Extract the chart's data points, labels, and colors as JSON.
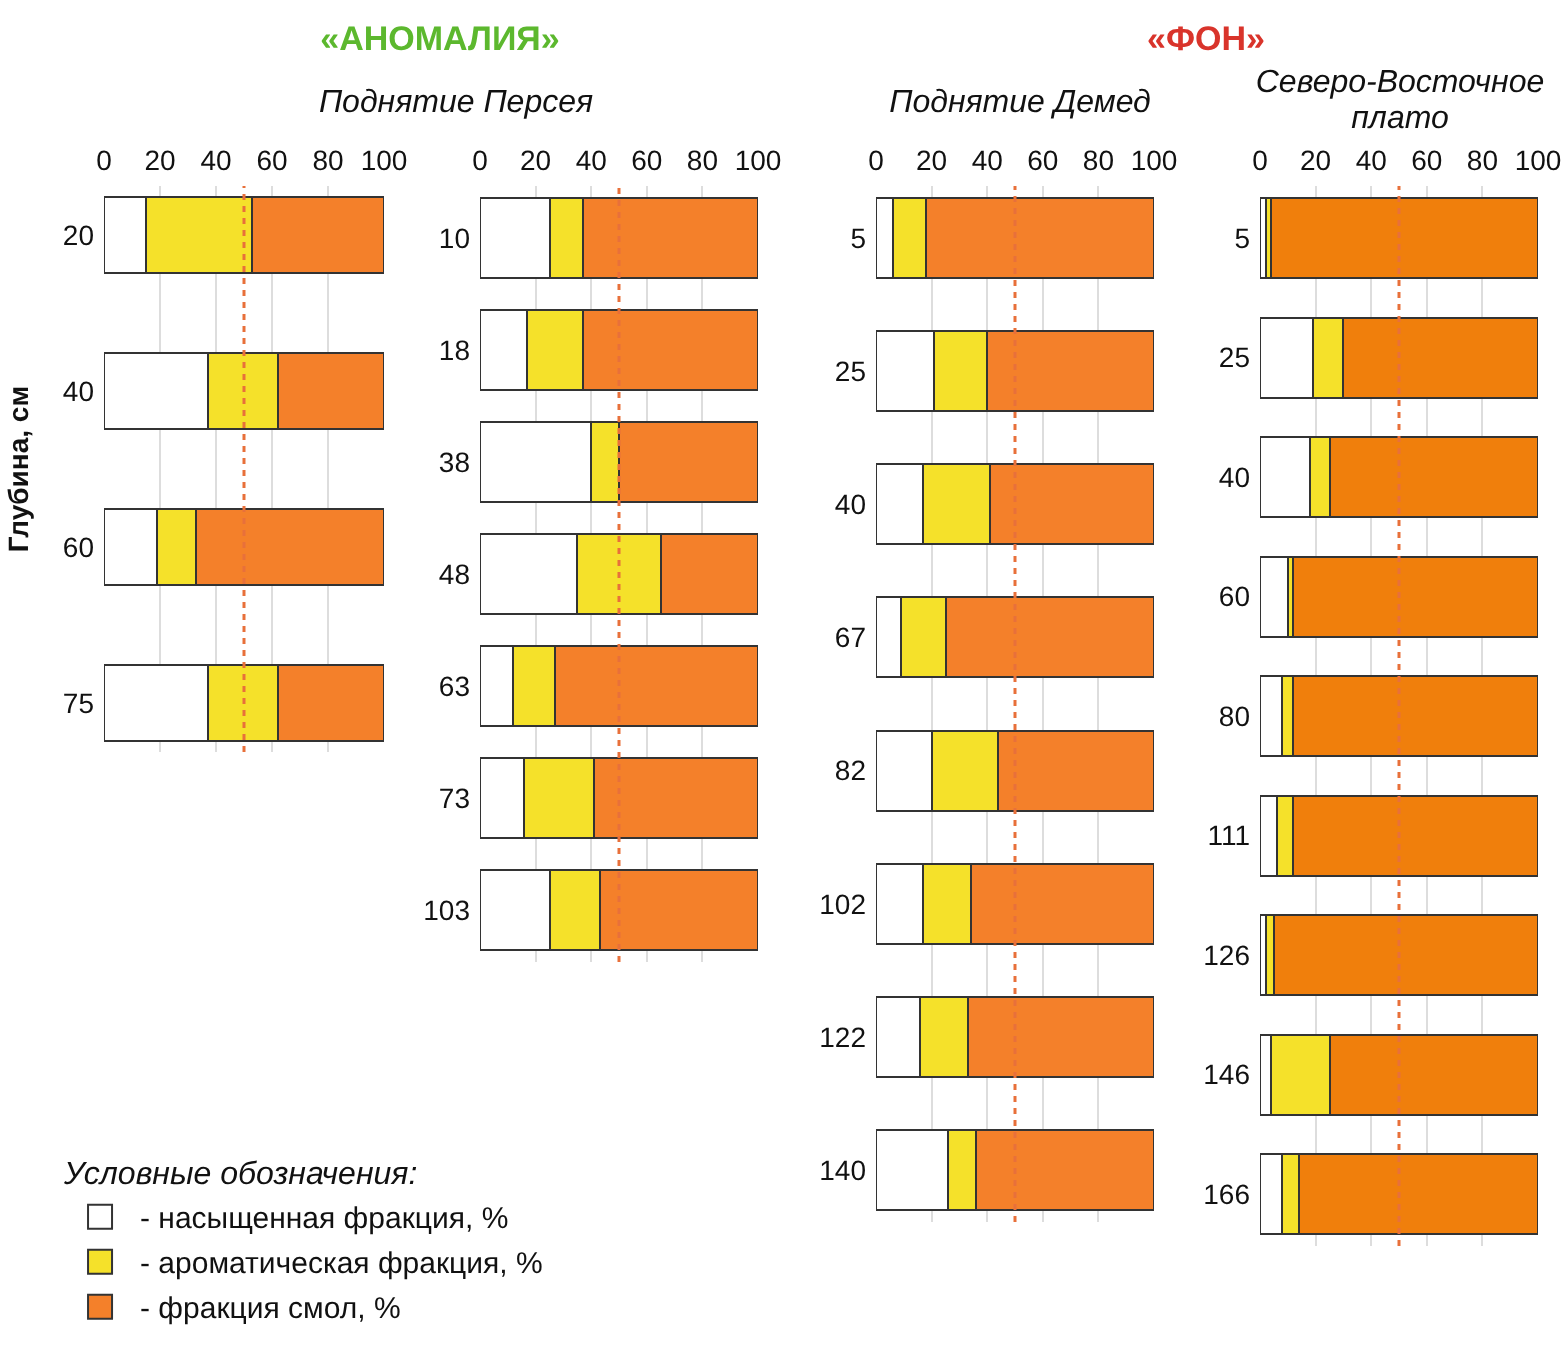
{
  "chart_data": [
    {
      "type": "bar",
      "orientation": "horizontal",
      "stacked": true,
      "title": "«АНОМАЛИЯ»",
      "subtitle": "Поднятие Персея",
      "ylabel": "Глубина, см",
      "legend": "bottom",
      "legend_title": "Условные обозначения:",
      "categories": [
        "20",
        "40",
        "60",
        "75"
      ],
      "series": [
        {
          "name": "- насыщенная фракция, %",
          "color": "#ffffff",
          "values": [
            15,
            37,
            19,
            37
          ]
        },
        {
          "name": "- ароматическая фракция, %",
          "color": "#f5e12a",
          "values": [
            38,
            25,
            14,
            25
          ]
        },
        {
          "name": "- фракция смол, %",
          "color": "#f4802a",
          "values": [
            47,
            38,
            67,
            38
          ]
        }
      ],
      "xlim": [
        0,
        100
      ],
      "xticks": [
        0,
        20,
        40,
        60,
        80,
        100
      ],
      "grid": "x",
      "ref_lines": [
        {
          "axis": "x",
          "value": 50,
          "color": "#e8703a",
          "line_style": "dotted"
        }
      ]
    },
    {
      "type": "bar",
      "orientation": "horizontal",
      "stacked": true,
      "categories": [
        "10",
        "18",
        "38",
        "48",
        "63",
        "73",
        "103"
      ],
      "series": [
        {
          "color": "#ffffff",
          "values": [
            25,
            17,
            40,
            35,
            12,
            16,
            25
          ]
        },
        {
          "color": "#f5e12a",
          "values": [
            12,
            20,
            10,
            30,
            15,
            25,
            18
          ]
        },
        {
          "color": "#f4802a",
          "values": [
            63,
            63,
            50,
            35,
            73,
            59,
            57
          ]
        }
      ],
      "xlim": [
        0,
        100
      ],
      "xticks": [
        0,
        20,
        40,
        60,
        80,
        100
      ],
      "grid": "x",
      "ref_lines": [
        {
          "axis": "x",
          "value": 50,
          "color": "#e8703a",
          "line_style": "dotted"
        }
      ]
    },
    {
      "type": "bar",
      "orientation": "horizontal",
      "stacked": true,
      "title": "«ФОН»",
      "subtitle": "Поднятие Демед",
      "categories": [
        "5",
        "25",
        "40",
        "67",
        "82",
        "102",
        "122",
        "140"
      ],
      "series": [
        {
          "color": "#ffffff",
          "values": [
            6,
            21,
            17,
            9,
            20,
            17,
            16,
            26
          ]
        },
        {
          "color": "#f5e12a",
          "values": [
            12,
            19,
            24,
            16,
            24,
            17,
            17,
            10
          ]
        },
        {
          "color": "#f4802a",
          "values": [
            82,
            60,
            59,
            75,
            56,
            66,
            67,
            64
          ]
        }
      ],
      "xlim": [
        0,
        100
      ],
      "xticks": [
        0,
        20,
        40,
        60,
        80,
        100
      ],
      "grid": "x",
      "ref_lines": [
        {
          "axis": "x",
          "value": 50,
          "color": "#e8703a",
          "line_style": "dotted"
        }
      ]
    },
    {
      "type": "bar",
      "orientation": "horizontal",
      "stacked": true,
      "subtitle": "Северо-Восточное плато",
      "categories": [
        "5",
        "25",
        "40",
        "60",
        "80",
        "111",
        "126",
        "146",
        "166"
      ],
      "series": [
        {
          "color": "#ffffff",
          "values": [
            2,
            19,
            18,
            10,
            8,
            6,
            2,
            4,
            8
          ]
        },
        {
          "color": "#f5e12a",
          "values": [
            2,
            11,
            7,
            2,
            4,
            6,
            3,
            21,
            6
          ]
        },
        {
          "color": "#f07f0c",
          "values": [
            96,
            70,
            75,
            88,
            88,
            88,
            95,
            75,
            86
          ]
        }
      ],
      "xlim": [
        0,
        100
      ],
      "xticks": [
        0,
        20,
        40,
        60,
        80,
        100
      ],
      "grid": "x",
      "ref_lines": [
        {
          "axis": "x",
          "value": 50,
          "color": "#e8703a",
          "line_style": "dotted"
        }
      ]
    }
  ]
}
